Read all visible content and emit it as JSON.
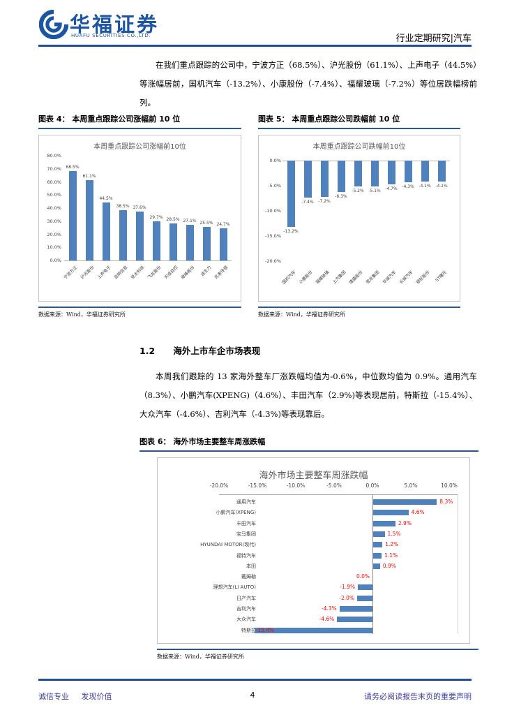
{
  "header": {
    "brand_cn": "华福证券",
    "brand_en": "HUAFU SECURITIES CO.,LTD.",
    "doc_type": "行业定期研究|汽车"
  },
  "paragraph1": "在我们重点跟踪的公司中，宁波方正（68.5%）、沪光股份（61.1%）、上声电子（44.5%）等涨幅居前，国机汽车（-13.2%）、小康股份（-7.4%）、福耀玻璃（-7.2%）等位居跌幅榜前列。",
  "section": {
    "number": "1.2",
    "title": "海外上市车企市场表现"
  },
  "paragraph2": "本周我们跟踪的 13 家海外整车厂涨跌幅均值为-0.6%，中位数均值为 0.9%。通用汽车（8.3%）、小鹏汽车(XPENG)（4.6%）、丰田汽车（2.9%)等表现居前，特斯拉（-15.4%）、大众汽车（-4.6%）、吉利汽车（-4.3%)等表现靠后。",
  "figures": {
    "fig4": {
      "caption": "图表 4： 本周重点跟踪公司涨幅前 10 位",
      "source": "数据来源：Wind，华福证券研究所"
    },
    "fig5": {
      "caption": "图表 5： 本周重点跟踪公司跌幅前 10 位",
      "source": "数据来源：Wind，华福证券研究所"
    },
    "fig6": {
      "caption": "图表 6： 海外市场主要整车周涨跌幅",
      "source": "数据来源：Wind，华福证券研究所"
    }
  },
  "footer": {
    "left_a": "诚信专业",
    "left_b": "发现价值",
    "page": "4",
    "right": "请务必阅读报告末页的重要声明"
  },
  "colors": {
    "accent_blue": "#1F4E9C",
    "rule_blue": "#2457A0",
    "bar_blue": "#4F81BD",
    "data_label_red": "#FF0000",
    "footer_text": "#3F3F9E",
    "chart_title_gray": "#595959"
  },
  "chart_data": [
    {
      "id": "fig4",
      "type": "bar",
      "title": "本周重点跟踪公司涨幅前10位",
      "categories": [
        "宁波方正",
        "沪光股份",
        "上声电子",
        "启明信息",
        "亚太科技",
        "飞龙股份",
        "天成自控",
        "继峰股份",
        "迪生力",
        "苏奥传感"
      ],
      "values": [
        68.5,
        61.1,
        44.5,
        38.5,
        37.6,
        29.7,
        28.5,
        27.1,
        25.5,
        24.7
      ],
      "value_labels": [
        "68.5%",
        "61.1%",
        "44.5%",
        "38.5%",
        "37.6%",
        "29.7%",
        "28.5%",
        "27.1%",
        "25.5%",
        "24.7%"
      ],
      "yticks": [
        {
          "label": "80.0%",
          "v": 80
        },
        {
          "label": "70.0%",
          "v": 70
        },
        {
          "label": "60.0%",
          "v": 60
        },
        {
          "label": "50.0%",
          "v": 50
        },
        {
          "label": "40.0%",
          "v": 40
        },
        {
          "label": "30.0%",
          "v": 30
        },
        {
          "label": "20.0%",
          "v": 20
        },
        {
          "label": "10.0%",
          "v": 10
        },
        {
          "label": "0.0%",
          "v": 0
        }
      ],
      "ylim": [
        0,
        80
      ],
      "legend": "none",
      "grid": false,
      "bar_color": "#4F81BD"
    },
    {
      "id": "fig5",
      "type": "bar",
      "title": "本周重点跟踪公司跌幅前10位",
      "categories": [
        "国机汽车",
        "小康股份",
        "福耀玻璃",
        "上汽集团",
        "隆盛股份",
        "雪龙集团",
        "华域汽车",
        "长城汽车",
        "银轮股份",
        "ST曙光"
      ],
      "values": [
        -13.2,
        -7.4,
        -7.2,
        -6.3,
        -5.2,
        -5.1,
        -4.7,
        -4.3,
        -4.1,
        -4.1
      ],
      "value_labels": [
        "-13.2%",
        "-7.4%",
        "-7.2%",
        "-6.3%",
        "-5.2%",
        "-5.1%",
        "-4.7%",
        "-4.3%",
        "-4.1%",
        "-4.1%"
      ],
      "yticks": [
        {
          "label": "0.0%",
          "v": 0
        },
        {
          "label": "-5.0%",
          "v": -5
        },
        {
          "label": "-10.0%",
          "v": -10
        },
        {
          "label": "-15.0%",
          "v": -15
        },
        {
          "label": "-20.0%",
          "v": -20
        }
      ],
      "ylim": [
        -20,
        0
      ],
      "legend": "none",
      "grid": false,
      "bar_color": "#4F81BD"
    },
    {
      "id": "fig6",
      "type": "bar",
      "orientation": "horizontal",
      "title": "海外市场主要整车周涨跌幅",
      "categories": [
        "通用汽车",
        "小鹏汽车(XPENG)",
        "丰田汽车",
        "宝马集团",
        "HYUNDAI MOTOR(现代)",
        "福特汽车",
        "本田",
        "戴姆勒",
        "理想汽车(LI AUTO)",
        "日产汽车",
        "吉利汽车",
        "大众汽车",
        "特斯拉"
      ],
      "values": [
        8.3,
        4.6,
        2.9,
        1.5,
        1.2,
        1.1,
        0.9,
        0.0,
        -1.9,
        -2.0,
        -4.3,
        -4.6,
        -15.4
      ],
      "value_labels": [
        "8.3%",
        "4.6%",
        "2.9%",
        "1.5%",
        "1.2%",
        "1.1%",
        "0.9%",
        "0.0%",
        "-1.9%",
        "-2.0%",
        "-4.3%",
        "-4.6%",
        "-15.4%"
      ],
      "xticks": [
        {
          "label": "-20.0%",
          "v": -20
        },
        {
          "label": "-15.0%",
          "v": -15
        },
        {
          "label": "-10.0%",
          "v": -10
        },
        {
          "label": "-5.0%",
          "v": -5
        },
        {
          "label": "0.0%",
          "v": 0
        },
        {
          "label": "5.0%",
          "v": 5
        },
        {
          "label": "10.0%",
          "v": 10
        }
      ],
      "xlim": [
        -20,
        10
      ],
      "legend": "none",
      "grid": false,
      "bar_color": "#4F81BD",
      "value_label_color": "#FF0000"
    }
  ]
}
